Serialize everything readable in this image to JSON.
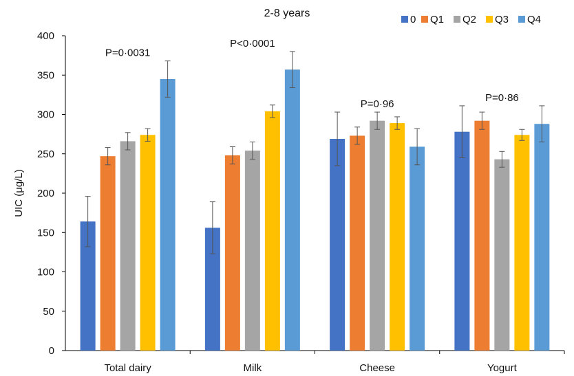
{
  "chart_data": {
    "type": "bar",
    "title": "2-8 years",
    "xlabel": "",
    "ylabel": "UIC (μg/L)",
    "ylim": [
      0,
      400
    ],
    "yticks": [
      0,
      50,
      100,
      150,
      200,
      250,
      300,
      350,
      400
    ],
    "grid": false,
    "legend_position": "top-right",
    "categories": [
      "Total dairy",
      "Milk",
      "Cheese",
      "Yogurt"
    ],
    "series": [
      {
        "name": "0",
        "color": "#4472C4",
        "values": [
          164,
          156,
          269,
          278
        ],
        "error": [
          32,
          33,
          34,
          33
        ]
      },
      {
        "name": "Q1",
        "color": "#ED7D31",
        "values": [
          247,
          248,
          273,
          292
        ],
        "error": [
          11,
          11,
          11,
          11
        ]
      },
      {
        "name": "Q2",
        "color": "#A5A5A5",
        "values": [
          266,
          254,
          292,
          243
        ],
        "error": [
          11,
          11,
          11,
          10
        ]
      },
      {
        "name": "Q3",
        "color": "#FFC000",
        "values": [
          274,
          304,
          289,
          274
        ],
        "error": [
          8,
          8,
          8,
          7
        ]
      },
      {
        "name": "Q4",
        "color": "#5B9BD5",
        "values": [
          345,
          357,
          259,
          288
        ],
        "error": [
          23,
          23,
          23,
          23
        ]
      }
    ],
    "annotations": [
      "P=0·0031",
      "P<0·0001",
      "P=0·96",
      "P=0·86"
    ]
  }
}
